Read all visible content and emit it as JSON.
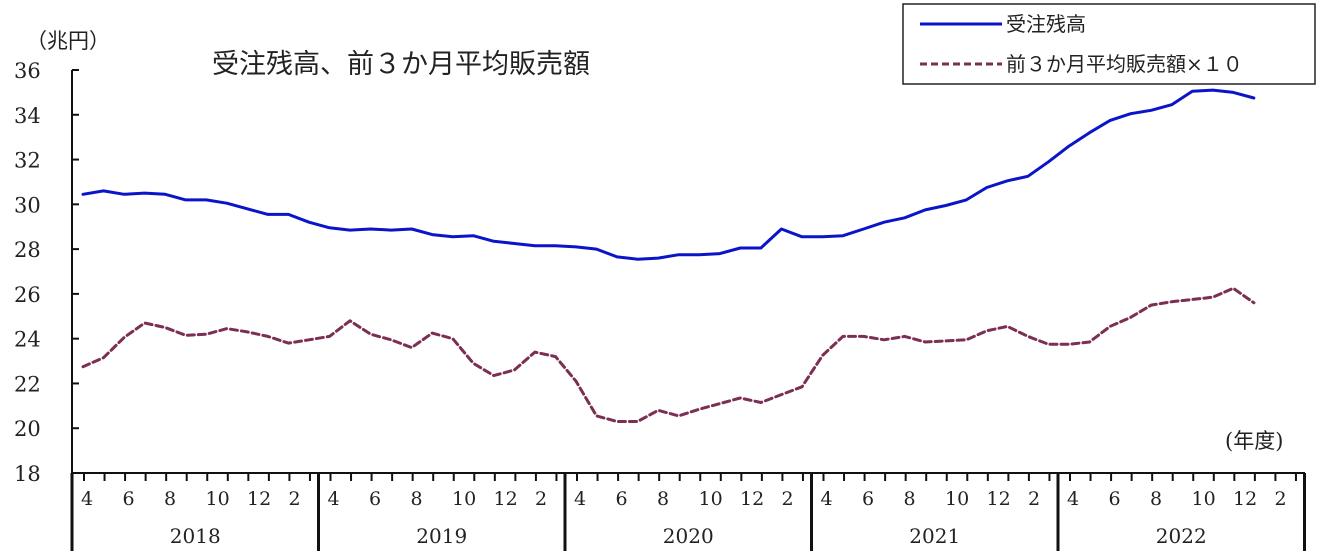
{
  "chart_data": {
    "type": "line",
    "title": "受注残高、前３か月平均販売額",
    "y_unit": "（兆円）",
    "x_unit": "(年度)",
    "ylim": [
      18,
      36
    ],
    "y_ticks": [
      18,
      20,
      22,
      24,
      26,
      28,
      30,
      32,
      34,
      36
    ],
    "month_ticks": [
      "4",
      "6",
      "8",
      "10",
      "12",
      "2"
    ],
    "fiscal_years": [
      "2018",
      "2019",
      "2020",
      "2021",
      "2022"
    ],
    "legend_position": "top-right",
    "x_start": "2018-04",
    "series": [
      {
        "name": "受注残高",
        "color": "#0a14c8",
        "dash": "solid",
        "values": [
          30.45,
          30.6,
          30.45,
          30.5,
          30.45,
          30.2,
          30.2,
          30.05,
          29.8,
          29.55,
          29.55,
          29.2,
          28.95,
          28.85,
          28.9,
          28.85,
          28.9,
          28.65,
          28.55,
          28.6,
          28.35,
          28.25,
          28.15,
          28.15,
          28.1,
          28.0,
          27.65,
          27.55,
          27.6,
          27.75,
          27.75,
          27.8,
          28.05,
          28.05,
          28.9,
          28.55,
          28.55,
          28.6,
          28.9,
          29.2,
          29.4,
          29.75,
          29.95,
          30.2,
          30.75,
          31.05,
          31.25,
          31.9,
          32.6,
          33.2,
          33.75,
          34.05,
          34.2,
          34.45,
          35.05,
          35.1,
          35.0,
          34.75
        ]
      },
      {
        "name": "前３か月平均販売額×１０",
        "color": "#7b2f52",
        "dash": "dashed",
        "values": [
          22.75,
          23.15,
          24.05,
          24.7,
          24.5,
          24.15,
          24.2,
          24.45,
          24.3,
          24.1,
          23.8,
          23.95,
          24.1,
          24.8,
          24.2,
          23.95,
          23.6,
          24.25,
          24.0,
          22.9,
          22.35,
          22.6,
          23.4,
          23.2,
          22.1,
          20.55,
          20.3,
          20.3,
          20.8,
          20.55,
          20.85,
          21.1,
          21.35,
          21.15,
          21.5,
          21.85,
          23.25,
          24.1,
          24.1,
          23.95,
          24.1,
          23.85,
          23.9,
          23.95,
          24.35,
          24.55,
          24.1,
          23.75,
          23.75,
          23.85,
          24.55,
          24.95,
          25.5,
          25.65,
          25.75,
          25.85,
          26.25,
          25.6
        ]
      }
    ]
  }
}
